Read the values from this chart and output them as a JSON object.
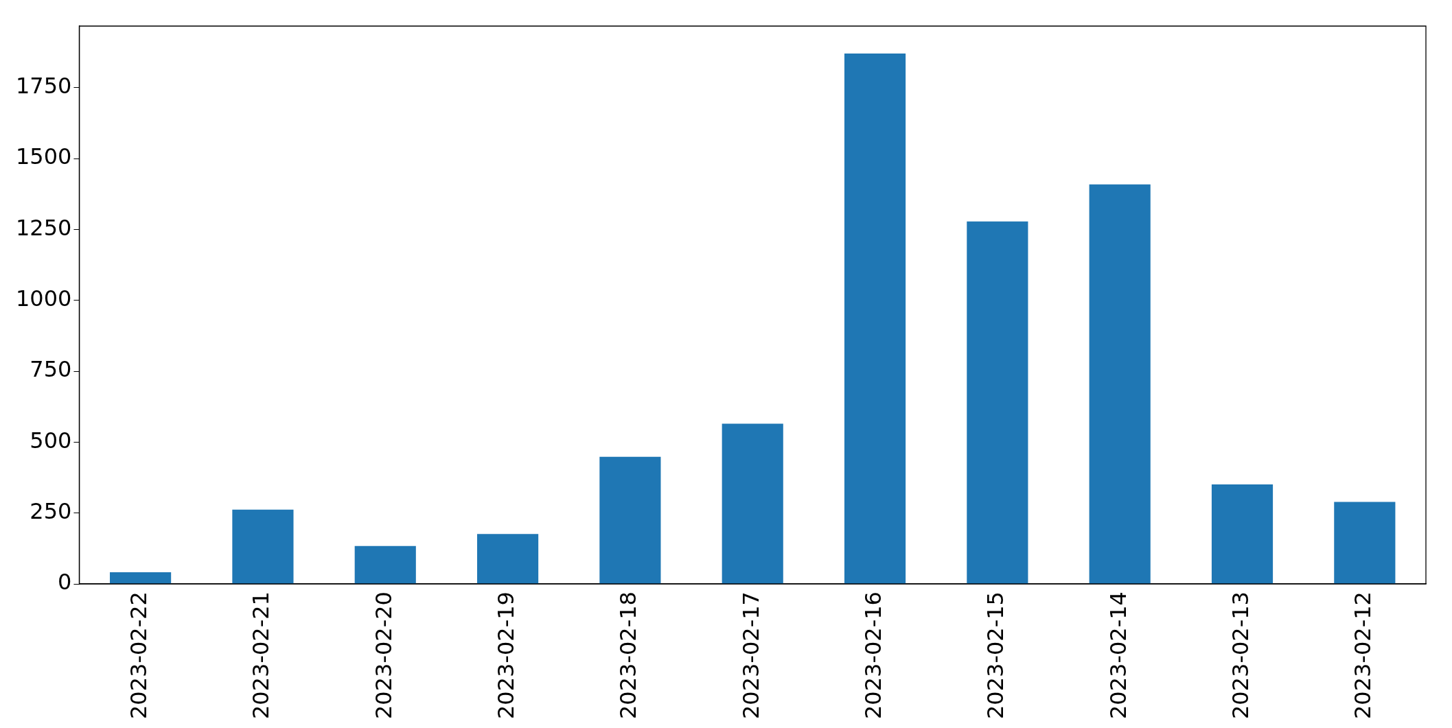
{
  "chart_data": {
    "type": "bar",
    "categories": [
      "2023-02-22",
      "2023-02-21",
      "2023-02-20",
      "2023-02-19",
      "2023-02-18",
      "2023-02-17",
      "2023-02-16",
      "2023-02-15",
      "2023-02-14",
      "2023-02-13",
      "2023-02-12"
    ],
    "values": [
      41,
      262,
      134,
      176,
      448,
      565,
      1870,
      1278,
      1409,
      351,
      289
    ],
    "color": "#1f77b4",
    "ylim": [
      0,
      1967
    ],
    "yticks": [
      0,
      250,
      500,
      750,
      1000,
      1250,
      1500,
      1750
    ],
    "grid": false,
    "legend": false
  }
}
